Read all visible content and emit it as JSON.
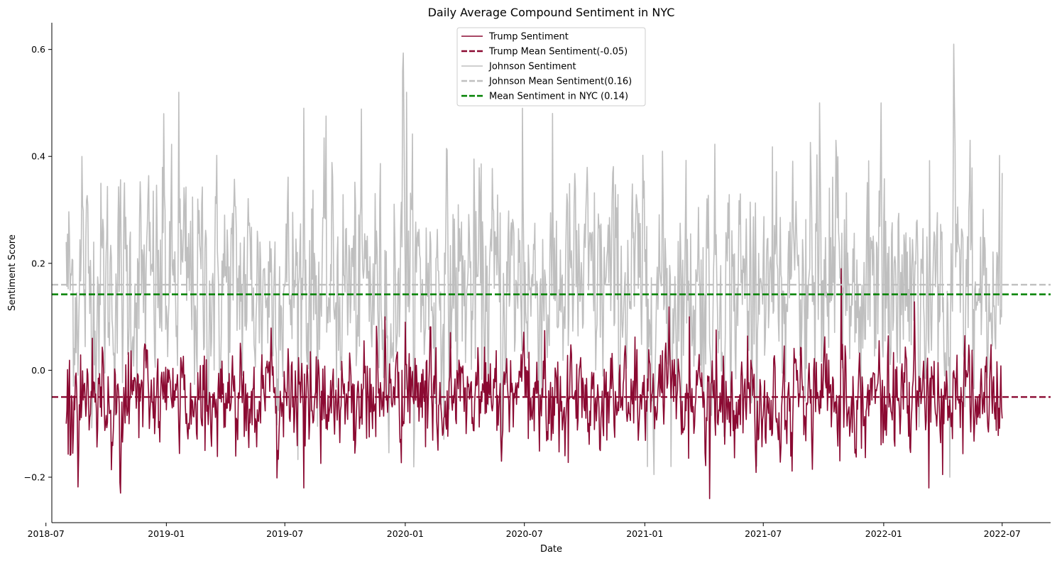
{
  "chart_data": {
    "type": "line",
    "title": "Daily Average Compound Sentiment in NYC",
    "xlabel": "Date",
    "ylabel": "Sentiment Score",
    "x_range": [
      "2018-08-01",
      "2022-07-01"
    ],
    "xlim": [
      "2018-07-10",
      "2022-09-13"
    ],
    "ylim": [
      -0.285,
      0.65
    ],
    "x_ticks": [
      "2018-07",
      "2019-01",
      "2019-07",
      "2020-01",
      "2020-07",
      "2021-01",
      "2021-07",
      "2022-01",
      "2022-07"
    ],
    "y_ticks": [
      -0.2,
      0.0,
      0.2,
      0.4,
      0.6
    ],
    "y_tick_labels": [
      "−0.2",
      "0.0",
      "0.2",
      "0.4",
      "0.6"
    ],
    "grid": false,
    "legend_position": "top-center",
    "series": [
      {
        "name": "Trump Sentiment",
        "color": "#8b0a32",
        "style": "solid",
        "mean": -0.05,
        "std": 0.045,
        "min": -0.24,
        "max": 0.19,
        "sample_points": [
          {
            "x": "2018-08-01",
            "y": -0.1
          },
          {
            "x": "2018-09-10",
            "y": 0.06
          },
          {
            "x": "2018-10-22",
            "y": -0.21
          },
          {
            "x": "2018-11-05",
            "y": -0.1
          },
          {
            "x": "2019-03-01",
            "y": -0.15
          },
          {
            "x": "2019-06-20",
            "y": -0.15
          },
          {
            "x": "2019-07-30",
            "y": -0.22
          },
          {
            "x": "2019-12-01",
            "y": 0.1
          },
          {
            "x": "2020-01-01",
            "y": 0.09
          },
          {
            "x": "2020-05-27",
            "y": -0.17
          },
          {
            "x": "2020-09-01",
            "y": -0.16
          },
          {
            "x": "2021-03-10",
            "y": 0.1
          },
          {
            "x": "2021-04-10",
            "y": -0.24
          },
          {
            "x": "2021-10-28",
            "y": 0.19
          },
          {
            "x": "2022-03-11",
            "y": -0.22
          },
          {
            "x": "2022-06-30",
            "y": -0.07
          }
        ]
      },
      {
        "name": "Trump Mean Sentiment(-0.05)",
        "color": "#8b0a32",
        "style": "dashed",
        "value": -0.05
      },
      {
        "name": "Johnson Sentiment",
        "color": "#bfbfbf",
        "style": "solid",
        "mean": 0.16,
        "std": 0.1,
        "min": -0.2,
        "max": 0.61,
        "sample_points": [
          {
            "x": "2018-08-01",
            "y": 0.24
          },
          {
            "x": "2018-08-25",
            "y": 0.4
          },
          {
            "x": "2018-12-28",
            "y": 0.48
          },
          {
            "x": "2019-01-20",
            "y": 0.52
          },
          {
            "x": "2019-07-30",
            "y": 0.49
          },
          {
            "x": "2019-12-28",
            "y": 0.56
          },
          {
            "x": "2020-01-03",
            "y": 0.52
          },
          {
            "x": "2020-05-27",
            "y": -0.17
          },
          {
            "x": "2020-06-28",
            "y": 0.49
          },
          {
            "x": "2021-01-05",
            "y": -0.18
          },
          {
            "x": "2021-02-10",
            "y": -0.18
          },
          {
            "x": "2021-09-25",
            "y": 0.5
          },
          {
            "x": "2021-12-28",
            "y": 0.5
          },
          {
            "x": "2022-04-12",
            "y": -0.2
          },
          {
            "x": "2022-04-18",
            "y": 0.61
          },
          {
            "x": "2022-06-30",
            "y": 0.1
          }
        ]
      },
      {
        "name": "Johnson Mean Sentiment(0.16)",
        "color": "#bfbfbf",
        "style": "dashed",
        "value": 0.16
      },
      {
        "name": "Mean Sentiment in NYC (0.14)",
        "color": "#008000",
        "style": "dashed",
        "value": 0.142
      }
    ]
  }
}
